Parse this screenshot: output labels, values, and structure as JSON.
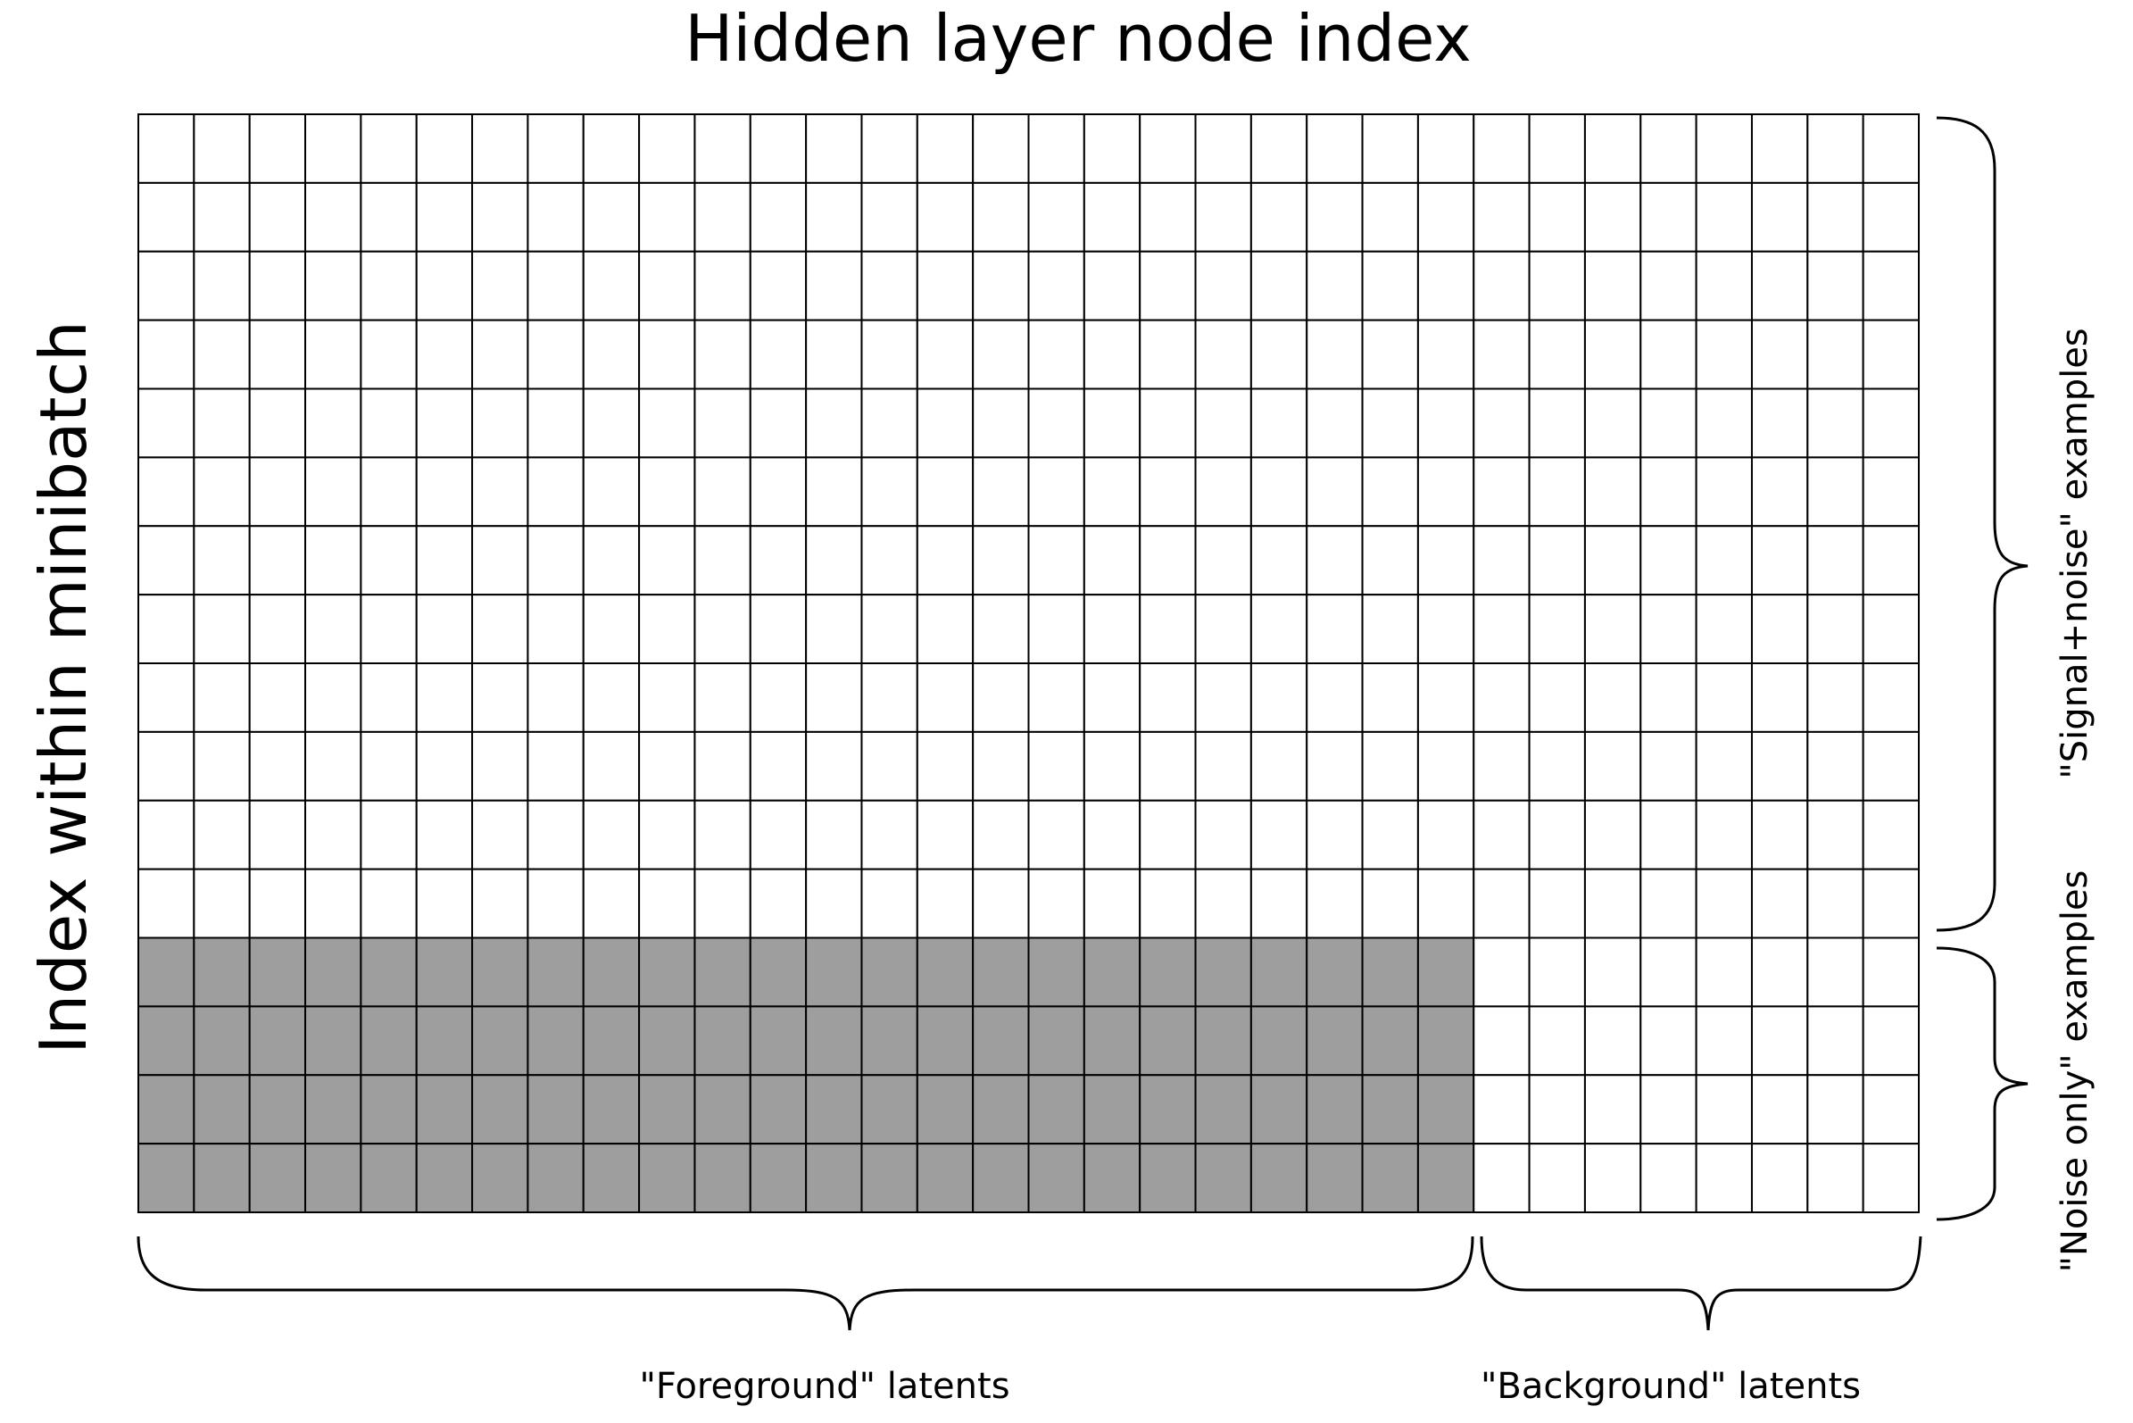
{
  "title": "Hidden layer node index",
  "y_axis_label": "Index within minibatch",
  "grid": {
    "columns": 32,
    "rows": 16,
    "foreground_columns": 24,
    "background_columns": 8,
    "signal_noise_rows": 12,
    "noise_only_rows": 4,
    "masked_region": "noise-only rows x foreground columns"
  },
  "groups": {
    "foreground_label": "\"Foreground\" latents",
    "background_label": "\"Background\" latents",
    "signal_noise_label": "\"Signal+noise\" examples",
    "noise_only_label": "\"Noise only\" examples"
  },
  "colors": {
    "cell_fill": "#ffffff",
    "masked_fill": "#9e9e9e",
    "grid_line": "#000000"
  }
}
